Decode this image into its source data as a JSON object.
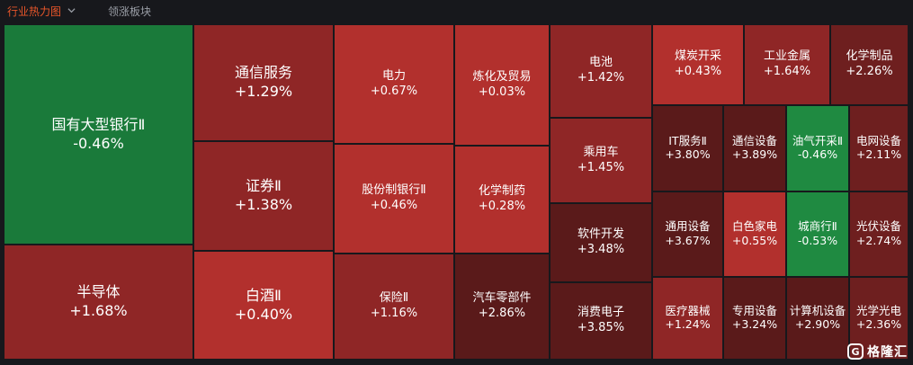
{
  "header": {
    "active_tab": "行业热力图",
    "inactive_tab": "领涨板块",
    "dropdown_icon": "chevron-down-icon"
  },
  "colors": {
    "green_dark": "#1a7a3a",
    "green": "#1f8a41",
    "red_bright": "#b2302d",
    "red": "#a0292a",
    "red_mid": "#8f2626",
    "red_dark": "#6e1f1f",
    "red_darkest": "#5a1a1a",
    "background": "#17181c"
  },
  "heatmap": {
    "tiles": [
      {
        "name": "国有大型银行Ⅱ",
        "change": "-0.46%"
      },
      {
        "name": "半导体",
        "change": "+1.68%"
      },
      {
        "name": "通信服务",
        "change": "+1.29%"
      },
      {
        "name": "证券Ⅱ",
        "change": "+1.38%"
      },
      {
        "name": "白酒Ⅱ",
        "change": "+0.40%"
      },
      {
        "name": "电力",
        "change": "+0.67%"
      },
      {
        "name": "股份制银行Ⅱ",
        "change": "+0.46%"
      },
      {
        "name": "保险Ⅱ",
        "change": "+1.16%"
      },
      {
        "name": "炼化及贸易",
        "change": "+0.03%"
      },
      {
        "name": "化学制药",
        "change": "+0.28%"
      },
      {
        "name": "汽车零部件",
        "change": "+2.86%"
      },
      {
        "name": "电池",
        "change": "+1.42%"
      },
      {
        "name": "乘用车",
        "change": "+1.45%"
      },
      {
        "name": "软件开发",
        "change": "+3.48%"
      },
      {
        "name": "消费电子",
        "change": "+3.85%"
      },
      {
        "name": "煤炭开采",
        "change": "+0.43%"
      },
      {
        "name": "工业金属",
        "change": "+1.64%"
      },
      {
        "name": "化学制品",
        "change": "+2.26%"
      },
      {
        "name": "IT服务Ⅱ",
        "change": "+3.80%"
      },
      {
        "name": "通信设备",
        "change": "+3.89%"
      },
      {
        "name": "油气开采Ⅱ",
        "change": "-0.46%"
      },
      {
        "name": "电网设备",
        "change": "+2.11%"
      },
      {
        "name": "通用设备",
        "change": "+3.67%"
      },
      {
        "name": "白色家电",
        "change": "+0.55%"
      },
      {
        "name": "城商行Ⅱ",
        "change": "-0.53%"
      },
      {
        "name": "光伏设备",
        "change": "+2.74%"
      },
      {
        "name": "医疗器械",
        "change": "+1.24%"
      },
      {
        "name": "专用设备",
        "change": "+3.24%"
      },
      {
        "name": "计算机设备",
        "change": "+2.90%"
      },
      {
        "name": "光学光电",
        "change": "+2.36%"
      }
    ]
  },
  "watermark": {
    "logo_icon": "gelonghui-logo-icon",
    "text": "格隆汇"
  }
}
